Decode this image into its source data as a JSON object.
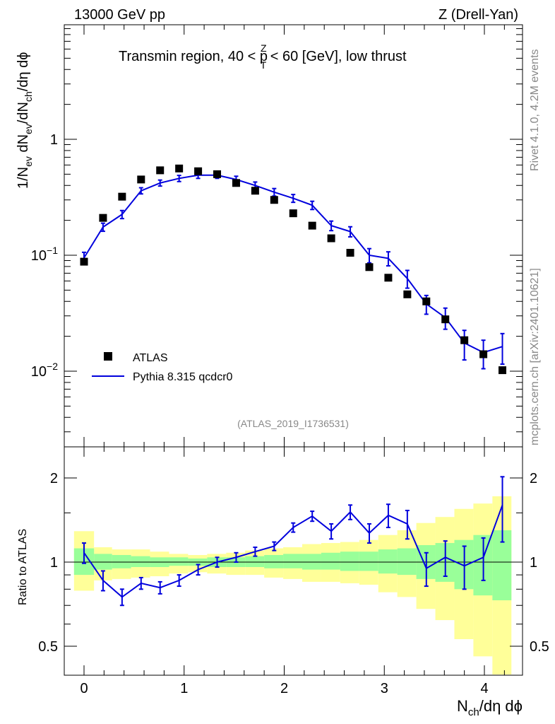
{
  "header": {
    "left": "13000 GeV pp",
    "right": "Z (Drell-Yan)",
    "title_main": "Transmin region, 40 < p",
    "title_sup": "Z",
    "title_sub": "T",
    "title_end": " < 60 [GeV], low thrust"
  },
  "side": {
    "rivet": "Rivet 4.1.0,  4.2M events",
    "mcplots": "mcplots.cern.ch [arXiv:2401.10621]"
  },
  "watermark": "(ATLAS_2019_I1736531)",
  "legend": {
    "atlas": "ATLAS",
    "pythia": "Pythia 8.315 qcdcr0"
  },
  "axes": {
    "ylabel_top": "1/N_ev dN_ev/dN_ch/dη dϕ",
    "ylabel_ratio": "Ratio to ATLAS",
    "xlabel": "N_ch/dη dϕ"
  },
  "colors": {
    "mc": "#0000dd",
    "data": "#000000",
    "band_inner": "#99ff99",
    "band_outer": "#ffff99"
  },
  "chart_data": [
    {
      "type": "scatter",
      "panel": "main",
      "title": "Transmin region, 40 < pT^Z < 60 [GeV], low thrust",
      "xlabel": "Nch/dη dϕ",
      "ylabel": "1/Nev dNev/dNch/dη dϕ",
      "yscale": "log",
      "xlim": [
        -0.2,
        4.35
      ],
      "ylim": [
        0.0022,
        6.5
      ],
      "x_ticks": [
        0,
        1,
        2,
        3,
        4
      ],
      "y_ticks": [
        {
          "value": 0.01,
          "label": "10^-2"
        },
        {
          "value": 0.1,
          "label": "10^-1"
        },
        {
          "value": 1,
          "label": "1"
        }
      ],
      "x": [
        0.0,
        0.19,
        0.38,
        0.57,
        0.76,
        0.95,
        1.14,
        1.33,
        1.52,
        1.71,
        1.9,
        2.09,
        2.28,
        2.47,
        2.66,
        2.85,
        3.04,
        3.23,
        3.42,
        3.61,
        3.8,
        3.99,
        4.18
      ],
      "series": [
        {
          "name": "ATLAS",
          "marker": "square",
          "values": [
            0.088,
            0.21,
            0.32,
            0.45,
            0.54,
            0.56,
            0.53,
            0.5,
            0.42,
            0.36,
            0.3,
            0.23,
            0.18,
            0.14,
            0.105,
            0.079,
            0.064,
            0.046,
            0.04,
            0.028,
            0.0185,
            0.014,
            0.0102
          ]
        },
        {
          "name": "Pythia 8.315 qcdcr0",
          "marker": "line",
          "values": [
            0.095,
            0.175,
            0.225,
            0.36,
            0.42,
            0.46,
            0.49,
            0.49,
            0.45,
            0.4,
            0.35,
            0.31,
            0.27,
            0.18,
            0.16,
            0.1,
            0.094,
            0.063,
            0.038,
            0.029,
            0.0175,
            0.0145,
            0.0163
          ],
          "errors": [
            0.011,
            0.014,
            0.018,
            0.022,
            0.025,
            0.028,
            0.03,
            0.03,
            0.03,
            0.028,
            0.026,
            0.024,
            0.022,
            0.017,
            0.016,
            0.014,
            0.013,
            0.011,
            0.007,
            0.006,
            0.005,
            0.004,
            0.0048
          ]
        }
      ]
    },
    {
      "type": "line",
      "panel": "ratio",
      "ylabel": "Ratio to ATLAS",
      "xlabel": "Nch/dη dϕ",
      "xlim": [
        -0.2,
        4.35
      ],
      "ylim": [
        0.42,
        2.35
      ],
      "y_ticks": [
        {
          "value": 0.5,
          "label": "0.5"
        },
        {
          "value": 1,
          "label": "1"
        },
        {
          "value": 2,
          "label": "2"
        }
      ],
      "x_ticks": [
        0,
        1,
        2,
        3,
        4
      ],
      "x": [
        0.0,
        0.19,
        0.38,
        0.57,
        0.76,
        0.95,
        1.14,
        1.33,
        1.52,
        1.71,
        1.9,
        2.09,
        2.28,
        2.47,
        2.66,
        2.85,
        3.04,
        3.23,
        3.42,
        3.61,
        3.8,
        3.99,
        4.18
      ],
      "series": [
        {
          "name": "Pythia 8.315 qcdcr0 / ATLAS",
          "values": [
            1.08,
            0.86,
            0.75,
            0.84,
            0.81,
            0.86,
            0.94,
            1.0,
            1.04,
            1.09,
            1.14,
            1.33,
            1.46,
            1.29,
            1.51,
            1.27,
            1.47,
            1.37,
            0.95,
            1.04,
            0.97,
            1.04,
            1.6
          ],
          "errors": [
            0.09,
            0.07,
            0.05,
            0.04,
            0.04,
            0.04,
            0.04,
            0.04,
            0.04,
            0.04,
            0.04,
            0.05,
            0.06,
            0.08,
            0.09,
            0.1,
            0.14,
            0.16,
            0.13,
            0.15,
            0.17,
            0.18,
            0.42
          ]
        }
      ],
      "bands": {
        "edges": [
          -0.1,
          0.1,
          0.28,
          0.47,
          0.66,
          0.85,
          1.04,
          1.23,
          1.42,
          1.61,
          1.8,
          1.99,
          2.18,
          2.37,
          2.56,
          2.75,
          2.94,
          3.13,
          3.32,
          3.51,
          3.7,
          3.89,
          4.08,
          4.27
        ],
        "inner": [
          [
            0.9,
            1.12
          ],
          [
            0.94,
            1.07
          ],
          [
            0.95,
            1.06
          ],
          [
            0.96,
            1.05
          ],
          [
            0.96,
            1.04
          ],
          [
            0.97,
            1.04
          ],
          [
            0.97,
            1.03
          ],
          [
            0.96,
            1.04
          ],
          [
            0.96,
            1.04
          ],
          [
            0.96,
            1.05
          ],
          [
            0.95,
            1.06
          ],
          [
            0.95,
            1.07
          ],
          [
            0.94,
            1.07
          ],
          [
            0.94,
            1.08
          ],
          [
            0.93,
            1.09
          ],
          [
            0.93,
            1.09
          ],
          [
            0.91,
            1.11
          ],
          [
            0.9,
            1.12
          ],
          [
            0.87,
            1.15
          ],
          [
            0.85,
            1.17
          ],
          [
            0.8,
            1.2
          ],
          [
            0.76,
            1.25
          ],
          [
            0.73,
            1.3
          ]
        ],
        "outer": [
          [
            0.79,
            1.29
          ],
          [
            0.86,
            1.13
          ],
          [
            0.87,
            1.11
          ],
          [
            0.88,
            1.11
          ],
          [
            0.89,
            1.09
          ],
          [
            0.91,
            1.07
          ],
          [
            0.92,
            1.06
          ],
          [
            0.91,
            1.07
          ],
          [
            0.9,
            1.08
          ],
          [
            0.9,
            1.1
          ],
          [
            0.88,
            1.12
          ],
          [
            0.87,
            1.13
          ],
          [
            0.85,
            1.16
          ],
          [
            0.85,
            1.17
          ],
          [
            0.84,
            1.18
          ],
          [
            0.83,
            1.2
          ],
          [
            0.78,
            1.25
          ],
          [
            0.75,
            1.3
          ],
          [
            0.68,
            1.38
          ],
          [
            0.62,
            1.45
          ],
          [
            0.53,
            1.55
          ],
          [
            0.46,
            1.62
          ],
          [
            0.32,
            1.72
          ]
        ]
      }
    }
  ]
}
